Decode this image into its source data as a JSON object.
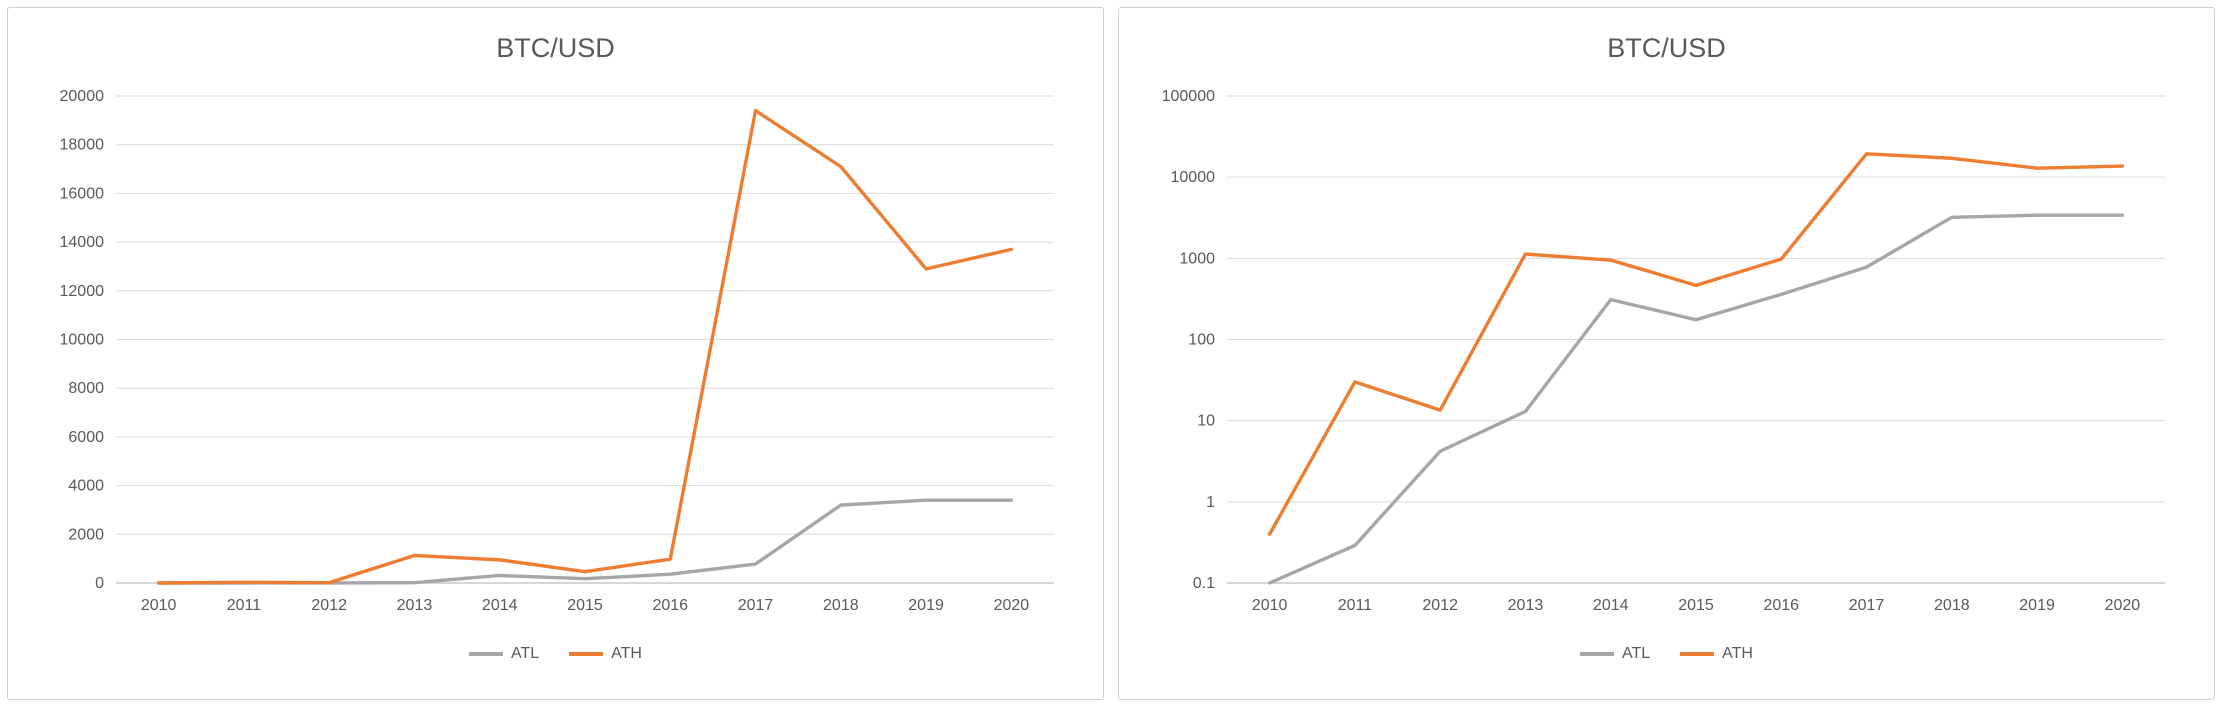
{
  "chart_data": [
    {
      "type": "line",
      "title": "BTC/USD",
      "xlabel": "",
      "ylabel": "",
      "yscale": "linear",
      "ylim": [
        0,
        20000
      ],
      "grid": true,
      "legend_position": "bottom",
      "x": [
        "2010",
        "2011",
        "2012",
        "2013",
        "2014",
        "2015",
        "2016",
        "2017",
        "2018",
        "2019",
        "2020"
      ],
      "yticks": [
        0,
        2000,
        4000,
        6000,
        8000,
        10000,
        12000,
        14000,
        16000,
        18000,
        20000
      ],
      "ytick_labels": [
        "0",
        "2000",
        "4000",
        "6000",
        "8000",
        "10000",
        "12000",
        "14000",
        "16000",
        "18000",
        "20000"
      ],
      "series": [
        {
          "name": "ATL",
          "color": "#a6a6a6",
          "values": [
            0.06,
            0.29,
            4.2,
            13,
            310,
            175,
            360,
            780,
            3200,
            3400,
            3400
          ]
        },
        {
          "name": "ATH",
          "color": "#ed7d31",
          "values": [
            0.4,
            30,
            13.5,
            1130,
            950,
            465,
            980,
            19400,
            17100,
            12900,
            13700
          ]
        }
      ]
    },
    {
      "type": "line",
      "title": "BTC/USD",
      "xlabel": "",
      "ylabel": "",
      "yscale": "log",
      "ylim": [
        0.1,
        100000
      ],
      "grid": true,
      "legend_position": "bottom",
      "x": [
        "2010",
        "2011",
        "2012",
        "2013",
        "2014",
        "2015",
        "2016",
        "2017",
        "2018",
        "2019",
        "2020"
      ],
      "yticks": [
        0.1,
        1,
        10,
        100,
        1000,
        10000,
        100000
      ],
      "ytick_labels": [
        "0.1",
        "1",
        "10",
        "100",
        "1000",
        "10000",
        "100000"
      ],
      "series": [
        {
          "name": "ATL",
          "color": "#a6a6a6",
          "values": [
            0.06,
            0.29,
            4.2,
            13,
            310,
            175,
            360,
            780,
            3200,
            3400,
            3400
          ]
        },
        {
          "name": "ATH",
          "color": "#ed7d31",
          "values": [
            0.4,
            30,
            13.5,
            1130,
            950,
            465,
            980,
            19400,
            17100,
            12900,
            13700
          ]
        }
      ]
    }
  ],
  "colors": {
    "gridline": "#d9d9d9",
    "axis_line": "#bfbfbf",
    "tick_label": "#595959",
    "title": "#595959"
  }
}
